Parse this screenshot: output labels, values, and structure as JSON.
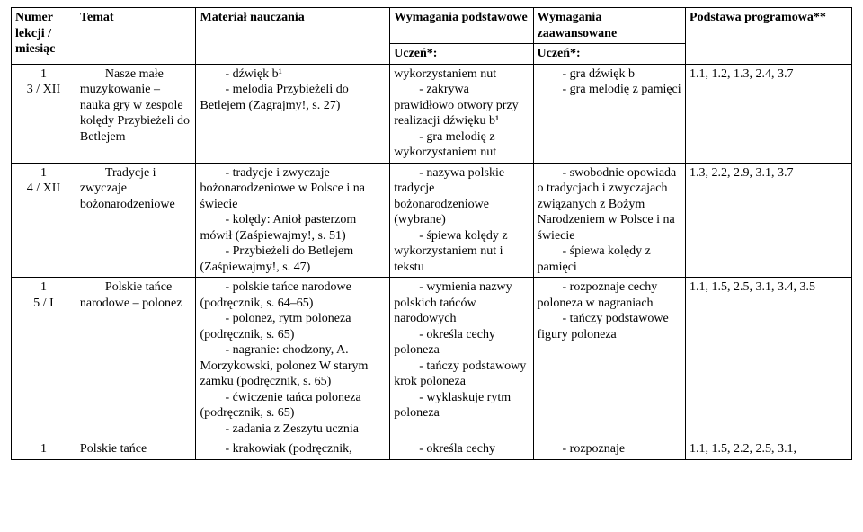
{
  "columns": {
    "c1": "Numer lekcji / miesiąc",
    "c2": "Temat",
    "c3": "Materiał nauczania",
    "c4": "Wymagania podstawowe",
    "c5": "Wymagania zaawansowane",
    "c6": "Podstawa programowa**"
  },
  "subheader": {
    "c4": "Uczeń*:",
    "c5": "Uczeń*:"
  },
  "rows": [
    {
      "c1a": "1",
      "c1b": "3 / XII",
      "c2": "        Nasze małe muzykowanie – nauka gry w zespole kolędy Przybieżeli do Betlejem",
      "c3": "        - dźwięk b¹\n        - melodia Przybieżeli do Betlejem (Zagrajmy!, s. 27)",
      "c4": "wykorzystaniem nut\n        - zakrywa prawidłowo otwory przy realizacji dźwięku b¹\n        - gra melodię z wykorzystaniem nut",
      "c5": "        - gra dźwięk b\n        - gra melodię z pamięci",
      "c6": "1.1, 1.2, 1.3, 2.4, 3.7"
    },
    {
      "c1a": "1",
      "c1b": "4 / XII",
      "c2": "        Tradycje i zwyczaje bożonarodzeniowe",
      "c3": "        - tradycje i zwyczaje bożonarodzeniowe w Polsce i na świecie\n        - kolędy: Anioł pasterzom mówił (Zaśpiewajmy!, s. 51)\n        - Przybieżeli do Betlejem (Zaśpiewajmy!, s. 47)",
      "c4": "        - nazywa polskie tradycje bożonarodzeniowe (wybrane)\n        - śpiewa kolędy z wykorzystaniem nut i tekstu",
      "c5": "        - swobodnie opowiada o tradycjach i zwyczajach związanych z Bożym Narodzeniem w Polsce i na świecie\n        - śpiewa kolędy z pamięci",
      "c6": "1.3, 2.2, 2.9, 3.1, 3.7"
    },
    {
      "c1a": "1",
      "c1b": "5 / I",
      "c2": "        Polskie tańce narodowe – polonez",
      "c3": "        - polskie tańce narodowe (podręcznik, s. 64–65)\n        - polonez, rytm poloneza (podręcznik, s. 65)\n        - nagranie: chodzony, A. Morzykowski, polonez W starym zamku (podręcznik, s. 65)\n        - ćwiczenie tańca poloneza (podręcznik, s. 65)\n        - zadania z Zeszytu ucznia",
      "c4": "        - wymienia nazwy polskich tańców narodowych\n        - określa cechy poloneza\n        - tańczy podstawowy krok poloneza\n        - wyklaskuje rytm poloneza",
      "c5": "        - rozpoznaje cechy poloneza w nagraniach\n        - tańczy podstawowe figury poloneza",
      "c6": "1.1, 1.5, 2.5, 3.1, 3.4, 3.5"
    },
    {
      "c1a": "1",
      "c1b": "",
      "c2": "Polskie tańce",
      "c3": "        - krakowiak (podręcznik,",
      "c4": "        - określa cechy",
      "c5": "        - rozpoznaje",
      "c6": "1.1, 1.5, 2.2, 2.5, 3.1,"
    }
  ]
}
